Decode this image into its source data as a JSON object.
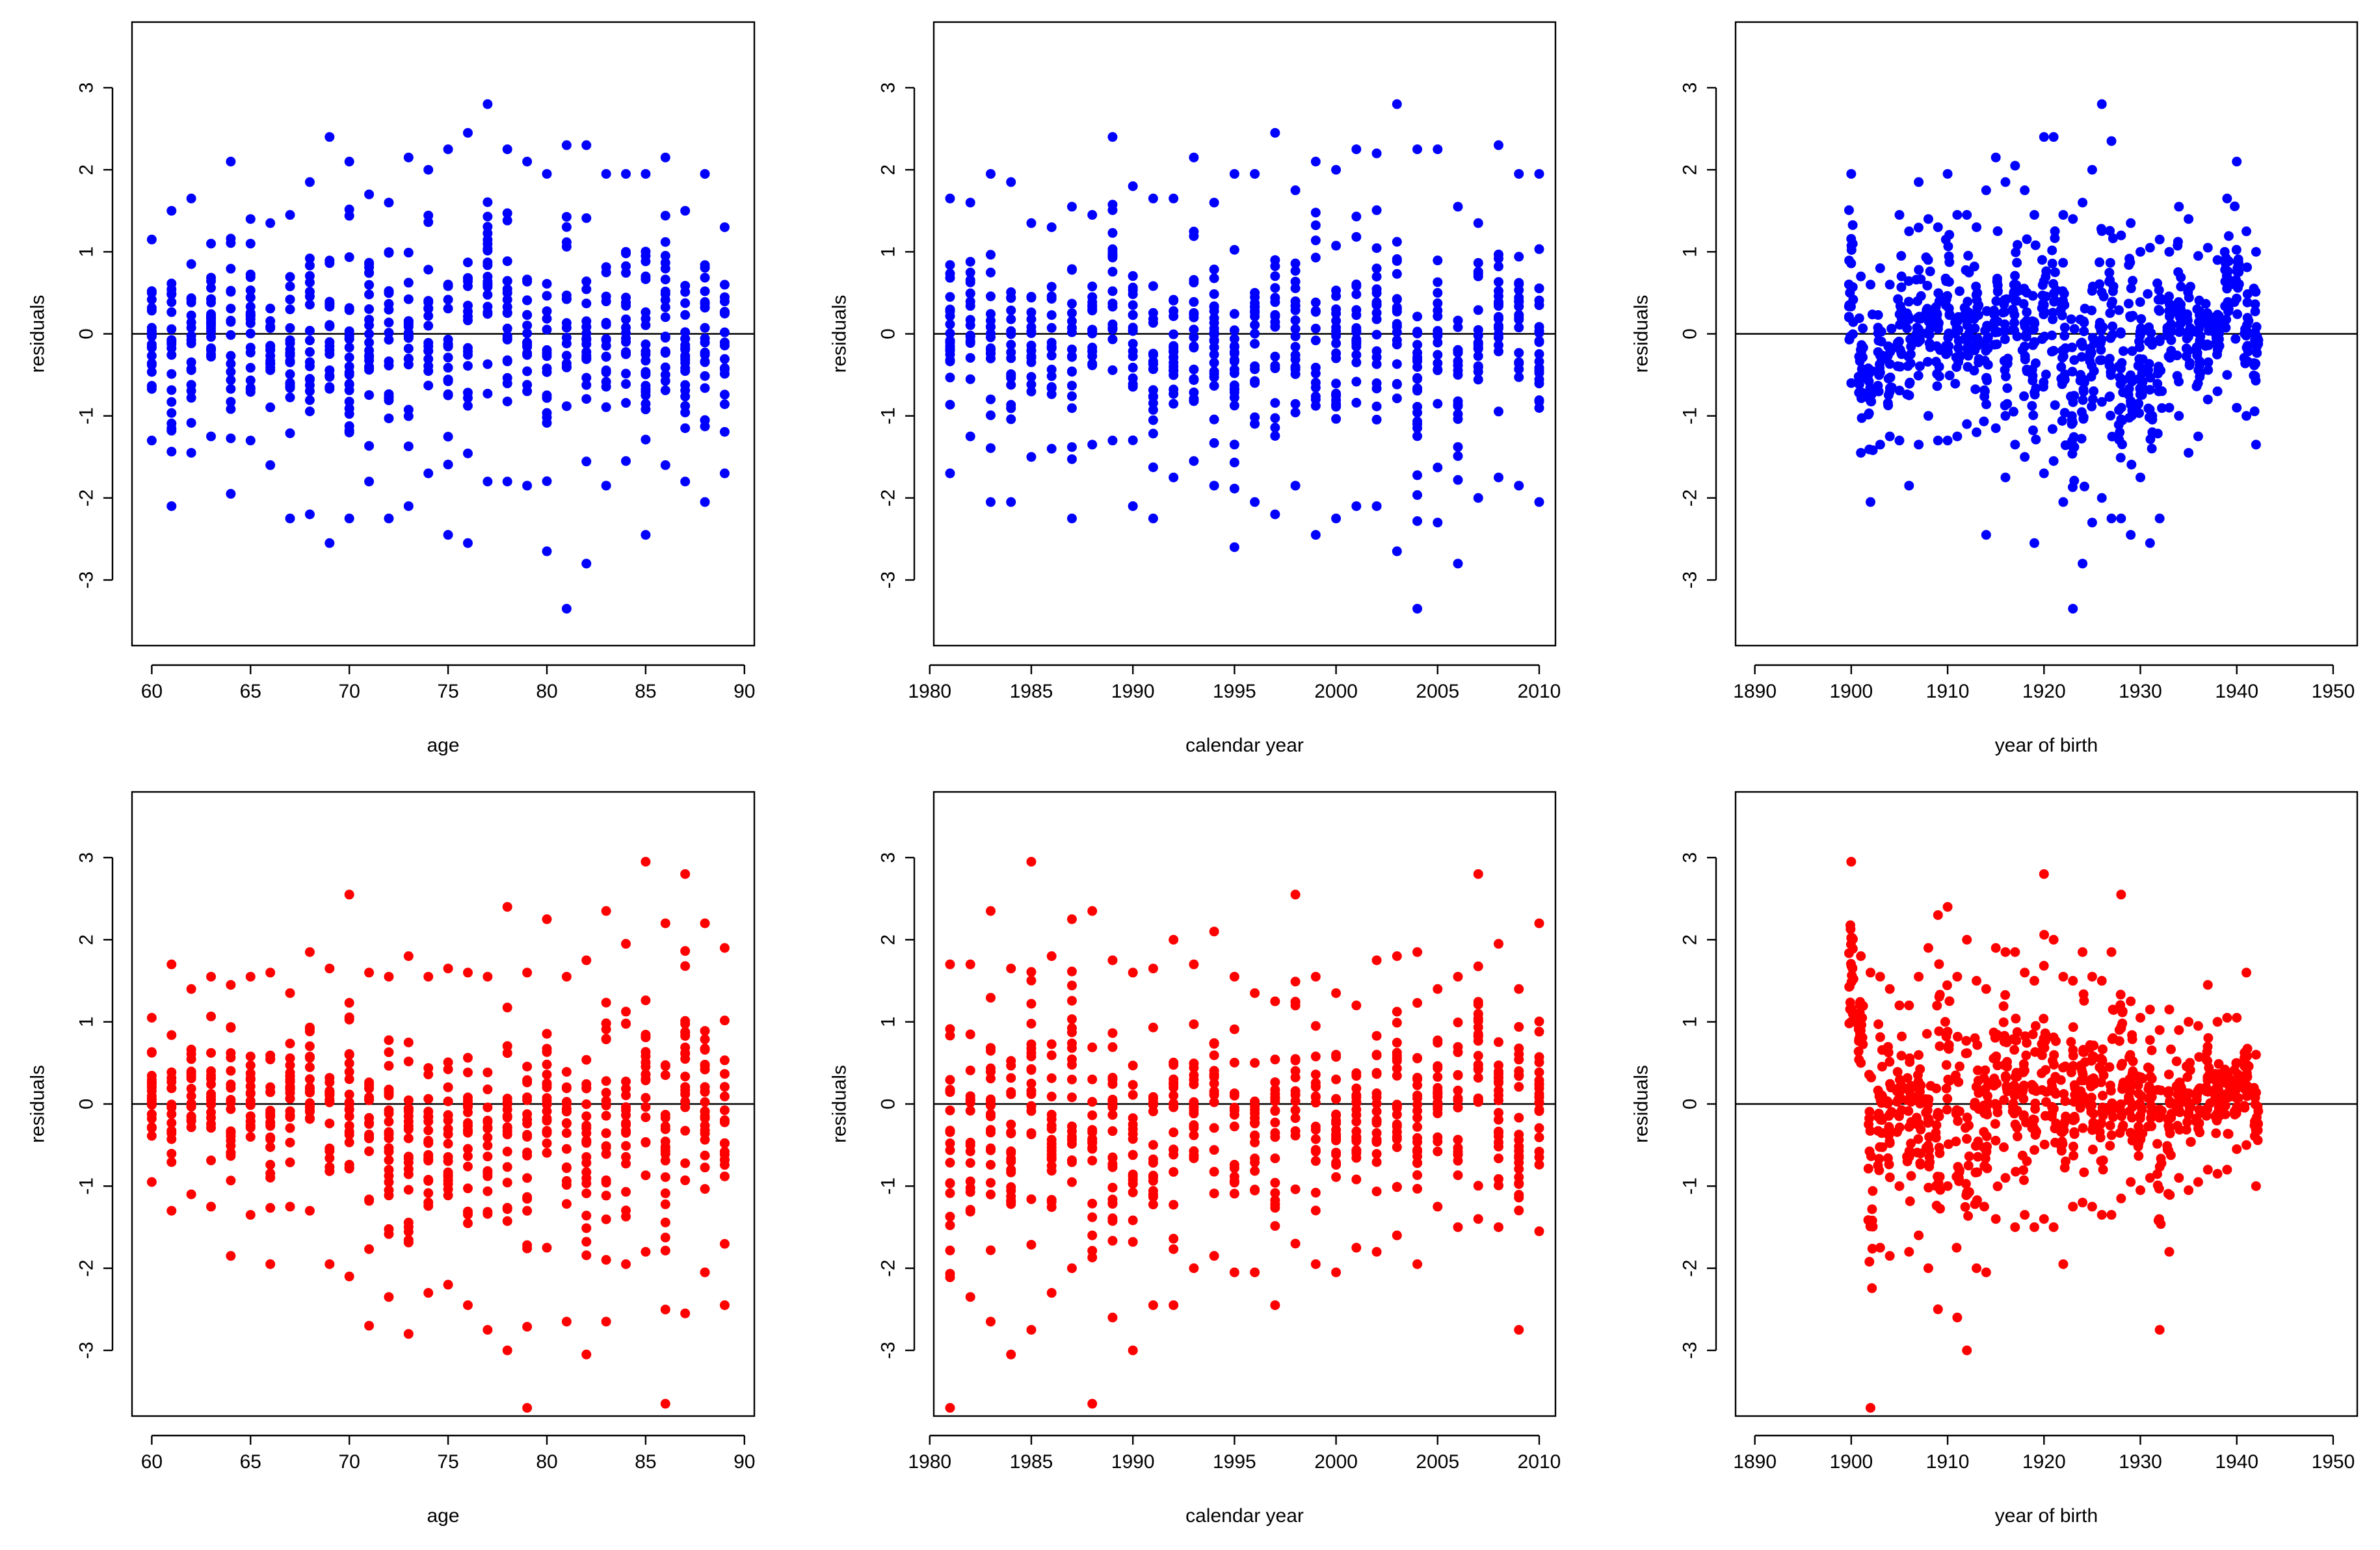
{
  "figure": {
    "background": "#ffffff"
  },
  "chart_data": [
    {
      "id": "age_blue",
      "type": "scatter",
      "color": "#0000ff",
      "xlabel": "age",
      "ylabel": "residuals",
      "xlim": [
        59,
        90.5
      ],
      "ylim": [
        -3.8,
        3.8
      ],
      "xticks": [
        60,
        65,
        70,
        75,
        80,
        85,
        90
      ],
      "yticks": [
        -3,
        -2,
        -1,
        0,
        1,
        2,
        3
      ],
      "reference_line": 0,
      "x_categories": [
        60,
        89,
        1
      ],
      "x": [
        60,
        60,
        60,
        61,
        61,
        62,
        62,
        63,
        63,
        64,
        64,
        65,
        65,
        66,
        66,
        67,
        67,
        68,
        68,
        69,
        69,
        70,
        70,
        71,
        71,
        72,
        72,
        73,
        73,
        74,
        74,
        75,
        75,
        76,
        76,
        77,
        77,
        78,
        78,
        79,
        79,
        80,
        80,
        81,
        81,
        82,
        82,
        83,
        83,
        84,
        84,
        85,
        85,
        86,
        86,
        87,
        87,
        88,
        88,
        89,
        89
      ],
      "y": [
        1.15,
        -1.3,
        0.5,
        1.5,
        -2.1,
        1.65,
        -1.45,
        1.1,
        -1.25,
        2.1,
        -1.95,
        1.4,
        -1.3,
        1.35,
        -1.6,
        1.45,
        -2.25,
        1.85,
        -2.2,
        2.4,
        -2.55,
        2.1,
        -2.25,
        1.7,
        -1.8,
        1.6,
        -2.25,
        2.15,
        -2.1,
        2.0,
        -1.7,
        2.25,
        -2.45,
        2.45,
        -2.55,
        2.8,
        -1.8,
        2.25,
        -1.8,
        2.1,
        -1.85,
        1.95,
        -2.65,
        2.3,
        -3.35,
        2.3,
        -2.8,
        1.95,
        -1.85,
        1.95,
        -1.55,
        1.95,
        -2.45,
        2.15,
        -1.6,
        1.5,
        -1.8,
        1.95,
        -2.05,
        1.3,
        -1.7
      ]
    },
    {
      "id": "year_blue",
      "type": "scatter",
      "color": "#0000ff",
      "xlabel": "calendar year",
      "ylabel": "residuals",
      "xlim": [
        1980.2,
        2010.8
      ],
      "ylim": [
        -3.8,
        3.8
      ],
      "xticks": [
        1980,
        1985,
        1990,
        1995,
        2000,
        2005,
        2010
      ],
      "yticks": [
        -3,
        -2,
        -1,
        0,
        1,
        2,
        3
      ],
      "reference_line": 0,
      "x": [
        1981,
        1981,
        1982,
        1982,
        1983,
        1983,
        1984,
        1984,
        1985,
        1985,
        1986,
        1986,
        1987,
        1987,
        1988,
        1988,
        1989,
        1989,
        1990,
        1990,
        1991,
        1991,
        1992,
        1992,
        1993,
        1993,
        1994,
        1994,
        1995,
        1995,
        1996,
        1996,
        1997,
        1997,
        1998,
        1998,
        1999,
        1999,
        2000,
        2000,
        2001,
        2001,
        2002,
        2002,
        2003,
        2003,
        2004,
        2004,
        2005,
        2005,
        2006,
        2006,
        2007,
        2007,
        2008,
        2008,
        2009,
        2009,
        2010,
        2010
      ],
      "y": [
        1.65,
        -1.7,
        1.6,
        -1.25,
        1.95,
        -2.05,
        1.85,
        -2.05,
        1.35,
        -1.5,
        1.3,
        -1.4,
        1.55,
        -2.25,
        1.45,
        -1.35,
        2.4,
        -1.3,
        1.8,
        -2.1,
        1.65,
        -2.25,
        1.65,
        -1.75,
        2.15,
        -1.55,
        1.6,
        -1.85,
        1.95,
        -2.6,
        1.95,
        -2.05,
        2.45,
        -2.2,
        1.75,
        -1.85,
        2.1,
        -2.45,
        2.0,
        -2.25,
        2.25,
        -2.1,
        2.2,
        -2.1,
        2.8,
        -2.65,
        2.25,
        -3.35,
        2.25,
        -2.3,
        1.55,
        -2.8,
        1.35,
        -2.0,
        2.3,
        -1.75,
        1.95,
        -1.85,
        1.95,
        -2.05
      ]
    },
    {
      "id": "birth_blue",
      "type": "scatter",
      "color": "#0000ff",
      "xlabel": "year of birth",
      "ylabel": "residuals",
      "xlim": [
        1888,
        1952.5
      ],
      "ylim": [
        -3.8,
        3.8
      ],
      "xticks": [
        1890,
        1900,
        1910,
        1920,
        1930,
        1940,
        1950
      ],
      "yticks": [
        -3,
        -2,
        -1,
        0,
        1,
        2,
        3
      ],
      "reference_line": 0,
      "x": [
        1900,
        1900,
        1901,
        1901,
        1902,
        1902,
        1903,
        1903,
        1904,
        1904,
        1905,
        1905,
        1906,
        1906,
        1907,
        1907,
        1908,
        1908,
        1909,
        1909,
        1910,
        1910,
        1911,
        1911,
        1912,
        1912,
        1913,
        1913,
        1914,
        1914,
        1915,
        1915,
        1916,
        1916,
        1917,
        1917,
        1918,
        1918,
        1919,
        1919,
        1920,
        1920,
        1921,
        1921,
        1922,
        1922,
        1923,
        1923,
        1924,
        1924,
        1925,
        1925,
        1926,
        1926,
        1927,
        1927,
        1928,
        1928,
        1929,
        1929,
        1930,
        1930,
        1931,
        1931,
        1932,
        1932,
        1933,
        1933,
        1934,
        1934,
        1935,
        1935,
        1936,
        1936,
        1937,
        1937,
        1938,
        1938,
        1939,
        1939,
        1940,
        1940,
        1941,
        1941,
        1942,
        1942
      ],
      "y": [
        1.95,
        -0.6,
        0.7,
        -1.45,
        0.6,
        -2.05,
        0.8,
        -1.35,
        0.6,
        -1.25,
        1.45,
        -1.3,
        1.25,
        -1.85,
        1.85,
        -1.35,
        1.4,
        -1.0,
        1.3,
        -1.3,
        1.95,
        -1.3,
        1.45,
        -1.25,
        1.45,
        -1.1,
        1.3,
        -1.2,
        1.75,
        -2.45,
        2.15,
        -1.15,
        1.85,
        -1.75,
        2.05,
        -1.35,
        1.75,
        -1.5,
        1.45,
        -2.55,
        2.4,
        -1.7,
        2.4,
        -1.55,
        1.45,
        -2.05,
        1.4,
        -3.35,
        1.6,
        -2.8,
        2.0,
        -2.3,
        2.8,
        -2.0,
        2.35,
        -2.25,
        1.2,
        -2.25,
        1.35,
        -2.45,
        1.0,
        -1.75,
        1.05,
        -2.55,
        1.15,
        -2.25,
        1.0,
        -0.9,
        1.55,
        -1.0,
        1.4,
        -1.45,
        0.95,
        -1.25,
        1.05,
        -0.8,
        0.9,
        -0.7,
        1.65,
        -0.5,
        2.1,
        -0.9,
        1.25,
        -1.0,
        1.0,
        -1.35
      ]
    },
    {
      "id": "age_red",
      "type": "scatter",
      "color": "#ff0000",
      "xlabel": "age",
      "ylabel": "residuals",
      "xlim": [
        59,
        90.5
      ],
      "ylim": [
        -3.8,
        3.8
      ],
      "xticks": [
        60,
        65,
        70,
        75,
        80,
        85,
        90
      ],
      "yticks": [
        -3,
        -2,
        -1,
        0,
        1,
        2,
        3
      ],
      "reference_line": 0,
      "x": [
        60,
        60,
        61,
        61,
        62,
        62,
        63,
        63,
        64,
        64,
        65,
        65,
        66,
        66,
        67,
        67,
        68,
        68,
        69,
        69,
        70,
        70,
        71,
        71,
        72,
        72,
        73,
        73,
        74,
        74,
        75,
        75,
        76,
        76,
        77,
        77,
        78,
        78,
        79,
        79,
        80,
        80,
        81,
        81,
        82,
        82,
        83,
        83,
        84,
        84,
        85,
        85,
        86,
        86,
        87,
        87,
        88,
        88,
        89,
        89
      ],
      "y": [
        1.05,
        -0.95,
        1.7,
        -1.3,
        1.4,
        -1.1,
        1.55,
        -1.25,
        1.45,
        -1.85,
        1.55,
        -1.35,
        1.6,
        -1.95,
        1.35,
        -1.25,
        1.85,
        -1.3,
        1.65,
        -1.95,
        2.55,
        -2.1,
        1.6,
        -2.7,
        1.55,
        -2.35,
        1.8,
        -2.8,
        1.55,
        -2.3,
        1.65,
        -2.2,
        1.6,
        -2.45,
        1.55,
        -2.75,
        2.4,
        -3.0,
        1.6,
        -3.7,
        2.25,
        -1.75,
        1.55,
        -2.65,
        1.75,
        -3.05,
        2.35,
        -2.65,
        1.95,
        -1.95,
        2.95,
        -1.8,
        2.2,
        -3.65,
        2.8,
        -2.55,
        2.2,
        -2.05,
        1.9,
        -2.45
      ]
    },
    {
      "id": "year_red",
      "type": "scatter",
      "color": "#ff0000",
      "xlabel": "calendar year",
      "ylabel": "residuals",
      "xlim": [
        1980.2,
        2010.8
      ],
      "ylim": [
        -3.8,
        3.8
      ],
      "xticks": [
        1980,
        1985,
        1990,
        1995,
        2000,
        2005,
        2010
      ],
      "yticks": [
        -3,
        -2,
        -1,
        0,
        1,
        2,
        3
      ],
      "reference_line": 0,
      "x": [
        1981,
        1981,
        1982,
        1982,
        1983,
        1983,
        1984,
        1984,
        1985,
        1985,
        1986,
        1986,
        1987,
        1987,
        1988,
        1988,
        1989,
        1989,
        1990,
        1990,
        1991,
        1991,
        1992,
        1992,
        1993,
        1993,
        1994,
        1994,
        1995,
        1995,
        1996,
        1996,
        1997,
        1997,
        1998,
        1998,
        1999,
        1999,
        2000,
        2000,
        2001,
        2001,
        2002,
        2002,
        2003,
        2003,
        2004,
        2004,
        2005,
        2005,
        2006,
        2006,
        2007,
        2007,
        2008,
        2008,
        2009,
        2009,
        2010,
        2010
      ],
      "y": [
        1.7,
        -3.7,
        1.7,
        -2.35,
        2.35,
        -2.65,
        1.65,
        -3.05,
        2.95,
        -2.75,
        1.8,
        -2.3,
        2.25,
        -2.0,
        2.35,
        -3.65,
        1.75,
        -2.6,
        1.6,
        -3.0,
        1.65,
        -2.45,
        2.0,
        -2.45,
        1.7,
        -2.0,
        2.1,
        -1.85,
        1.55,
        -2.05,
        1.35,
        -2.05,
        1.25,
        -2.45,
        2.55,
        -1.7,
        1.55,
        -1.95,
        1.35,
        -2.05,
        1.2,
        -1.75,
        1.75,
        -1.8,
        1.8,
        -1.6,
        1.85,
        -1.95,
        1.4,
        -1.25,
        1.55,
        -1.5,
        2.8,
        -1.4,
        1.95,
        -1.5,
        1.4,
        -2.75,
        2.2,
        -1.55
      ]
    },
    {
      "id": "birth_red",
      "type": "scatter",
      "color": "#ff0000",
      "xlabel": "year of birth",
      "ylabel": "residuals",
      "xlim": [
        1888,
        1952.5
      ],
      "ylim": [
        -3.8,
        3.8
      ],
      "xticks": [
        1890,
        1900,
        1910,
        1920,
        1930,
        1940,
        1950
      ],
      "yticks": [
        -3,
        -2,
        -1,
        0,
        1,
        2,
        3
      ],
      "reference_line": 0,
      "x": [
        1900,
        1900,
        1901,
        1901,
        1902,
        1902,
        1903,
        1903,
        1904,
        1904,
        1905,
        1905,
        1906,
        1906,
        1907,
        1907,
        1908,
        1908,
        1909,
        1909,
        1910,
        1910,
        1911,
        1911,
        1912,
        1912,
        1913,
        1913,
        1914,
        1914,
        1915,
        1915,
        1916,
        1916,
        1917,
        1917,
        1918,
        1918,
        1919,
        1919,
        1920,
        1920,
        1921,
        1921,
        1922,
        1922,
        1923,
        1923,
        1924,
        1924,
        1925,
        1925,
        1926,
        1926,
        1927,
        1927,
        1928,
        1928,
        1929,
        1929,
        1930,
        1930,
        1931,
        1931,
        1932,
        1932,
        1933,
        1933,
        1934,
        1934,
        1935,
        1935,
        1936,
        1936,
        1937,
        1937,
        1938,
        1938,
        1939,
        1939,
        1940,
        1940,
        1941,
        1941,
        1942,
        1942
      ],
      "y": [
        2.95,
        1.0,
        1.8,
        0.5,
        1.6,
        -3.7,
        1.55,
        -1.75,
        1.4,
        -1.85,
        1.2,
        -1.0,
        1.2,
        -1.8,
        1.55,
        -1.6,
        1.9,
        -2.0,
        2.3,
        -2.5,
        2.4,
        -1.0,
        1.55,
        -2.6,
        2.0,
        -3.0,
        1.5,
        -2.0,
        1.4,
        -2.05,
        1.9,
        -1.4,
        1.85,
        -0.9,
        1.85,
        -1.5,
        1.6,
        -1.35,
        1.5,
        -1.5,
        2.8,
        -1.4,
        2.0,
        -1.5,
        1.55,
        -1.95,
        1.5,
        -1.25,
        1.85,
        -1.2,
        1.55,
        -1.25,
        1.5,
        -1.35,
        1.85,
        -1.35,
        2.55,
        -1.15,
        1.25,
        -0.95,
        1.05,
        -1.05,
        1.15,
        -0.9,
        0.9,
        -2.75,
        1.15,
        -1.8,
        0.9,
        -0.9,
        1.0,
        -1.05,
        0.95,
        -0.95,
        1.45,
        -0.8,
        1.0,
        -0.85,
        1.05,
        -0.8,
        1.05,
        -0.55,
        1.6,
        -0.5,
        0.6,
        -1.0
      ]
    }
  ]
}
